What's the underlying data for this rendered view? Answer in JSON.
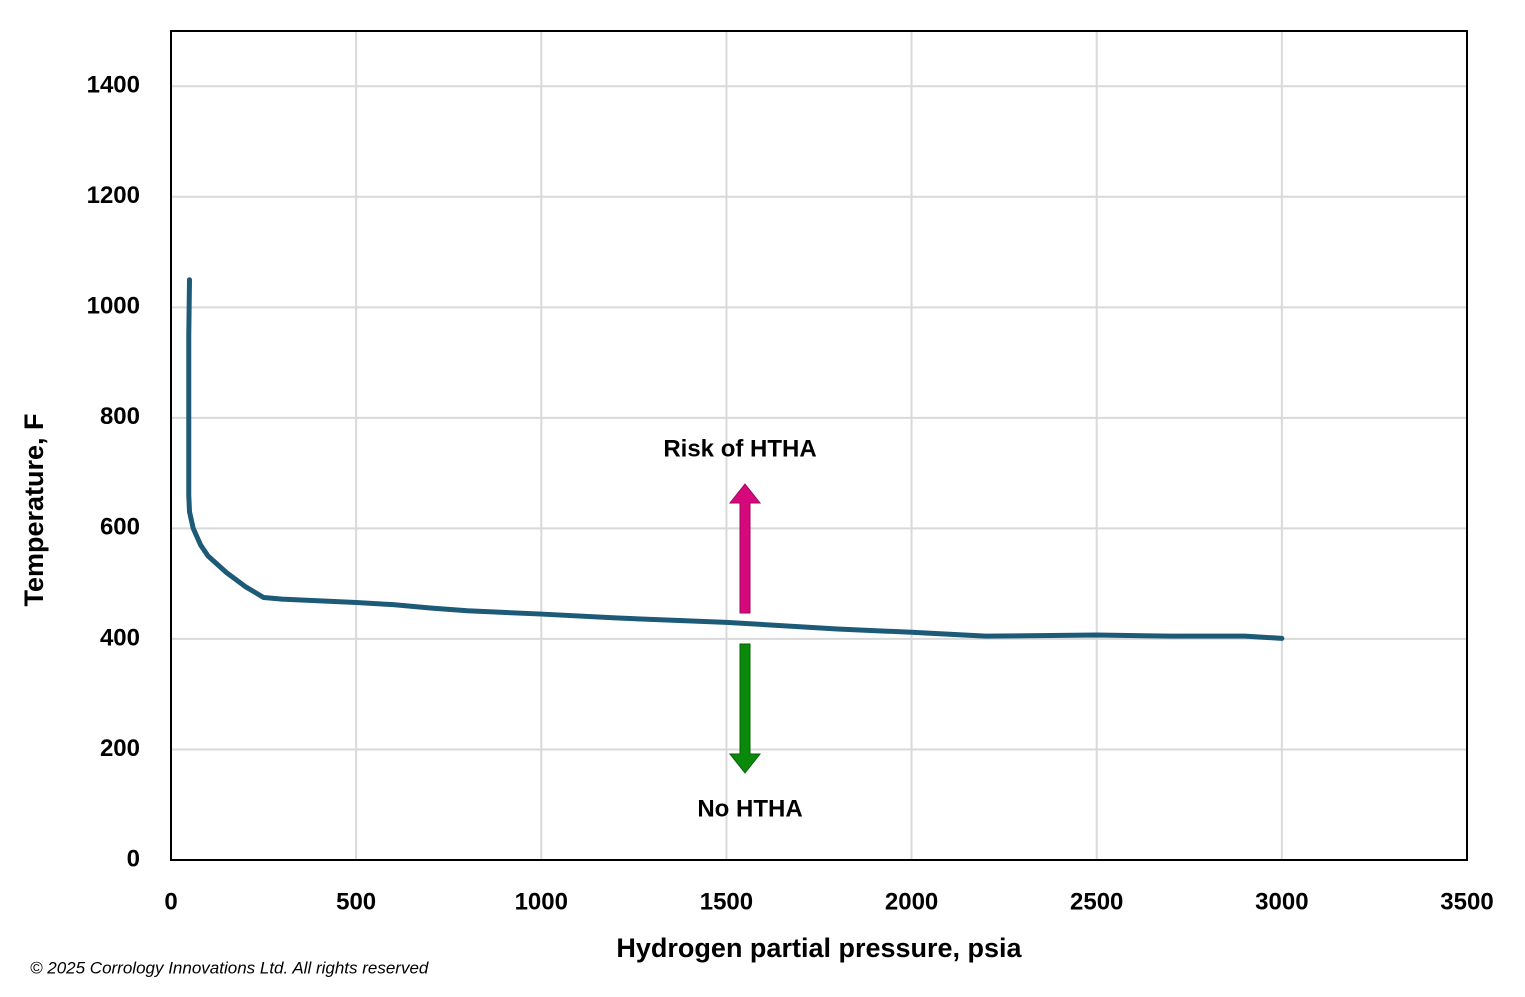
{
  "chart_data": {
    "type": "line",
    "x": [
      50,
      48,
      48,
      48,
      50,
      60,
      80,
      100,
      150,
      200,
      250,
      300,
      500,
      600,
      700,
      800,
      1000,
      1200,
      1500,
      1800,
      2000,
      2200,
      2500,
      2700,
      2900,
      3000
    ],
    "values": [
      1050,
      950,
      800,
      660,
      630,
      600,
      570,
      550,
      520,
      495,
      475,
      472,
      466,
      462,
      456,
      451,
      445,
      438,
      430,
      418,
      412,
      405,
      407,
      405,
      405,
      401
    ],
    "color": "#1d5a78",
    "xlabel": "Hydrogen partial pressure, psia",
    "ylabel": "Temperature, F",
    "xlim": [
      0,
      3500
    ],
    "xticks": [
      0,
      500,
      1000,
      1500,
      2000,
      2500,
      3000,
      3500
    ],
    "ylim": [
      0,
      1500
    ],
    "yticks": [
      0,
      200,
      400,
      600,
      800,
      1000,
      1200,
      1400
    ],
    "grid": true,
    "annotations": [
      "Risk of HTHA",
      "No HTHA"
    ]
  },
  "footer": "© 2025 Corrology Innovations Ltd. All rights reserved"
}
